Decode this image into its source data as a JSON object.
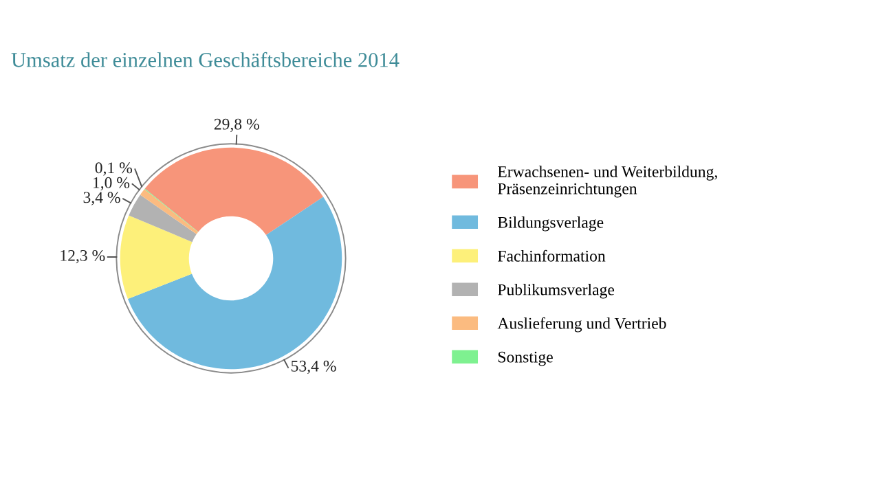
{
  "chart_data": {
    "type": "donut",
    "title": "Umsatz der einzelnen Geschäftsbereiche 2014",
    "categories": [
      "Erwachsenen- und Weiterbildung,\nPräsenzeinrichtungen",
      "Bildungsverlage",
      "Fachinformation",
      "Publikumsverlage",
      "Auslieferung und Vertrieb",
      "Sonstige"
    ],
    "values": [
      29.8,
      53.4,
      12.3,
      3.4,
      1.0,
      0.1
    ],
    "value_labels": [
      "29,8 %",
      "53,4 %",
      "12,3 %",
      "3,4 %",
      "1,0 %",
      "0,1 %"
    ],
    "colors": [
      "#f7957a",
      "#70bade",
      "#fdf07a",
      "#b2b2b2",
      "#fbbb80",
      "#7ef190"
    ],
    "legend": "right"
  }
}
